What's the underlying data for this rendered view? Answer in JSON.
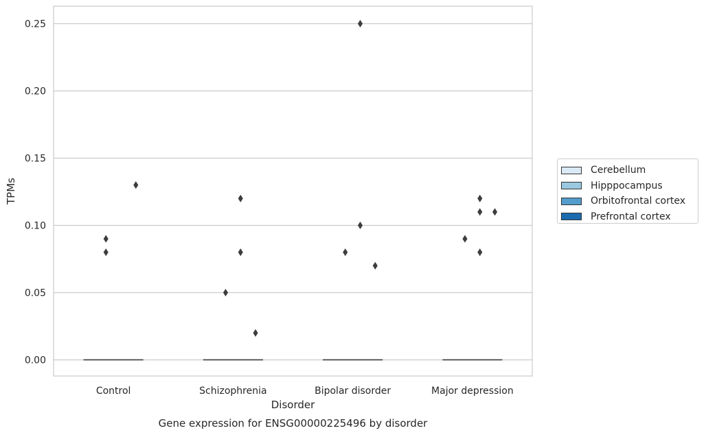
{
  "chart_data": {
    "type": "box",
    "title": "",
    "caption": "Gene expression for ENSG00000225496 by disorder",
    "xlabel": "Disorder",
    "ylabel": "TPMs",
    "ylim": [
      -0.012,
      0.263
    ],
    "yticks": [
      0.0,
      0.05,
      0.1,
      0.15,
      0.2,
      0.25
    ],
    "ytick_labels": [
      "0.00",
      "0.05",
      "0.10",
      "0.15",
      "0.20",
      "0.25"
    ],
    "grid": "horizontal",
    "legend_position": "right",
    "categories": [
      "Control",
      "Schizophrenia",
      "Bipolar disorder",
      "Major depression"
    ],
    "series": [
      {
        "name": "Cerebellum",
        "color": "#dbe9f6",
        "medians": [
          0,
          0,
          0,
          0
        ],
        "outliers": [
          [],
          [],
          [],
          []
        ]
      },
      {
        "name": "Hipppocampus",
        "color": "#9ac8e0",
        "medians": [
          0,
          0,
          0,
          0
        ],
        "outliers": [
          [
            0.09,
            0.08
          ],
          [
            0.05
          ],
          [
            0.08
          ],
          [
            0.09
          ]
        ]
      },
      {
        "name": "Orbitofrontal cortex",
        "color": "#529dcc",
        "medians": [
          0,
          0,
          0,
          0
        ],
        "outliers": [
          [],
          [
            0.12,
            0.08
          ],
          [
            0.1,
            0.25
          ],
          [
            0.12,
            0.11,
            0.08
          ]
        ]
      },
      {
        "name": "Prefrontal cortex",
        "color": "#1c6aaf",
        "medians": [
          0,
          0,
          0,
          0
        ],
        "outliers": [
          [
            0.13
          ],
          [
            0.02
          ],
          [
            0.07
          ],
          [
            0.11
          ]
        ]
      }
    ]
  }
}
